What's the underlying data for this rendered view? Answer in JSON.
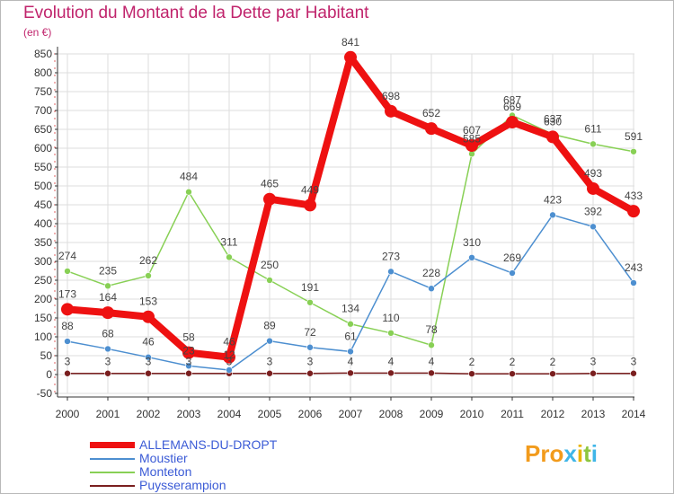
{
  "title": "Evolution du Montant de la Dette par Habitant",
  "unit": "(en €)",
  "chart_data": {
    "type": "line",
    "x": [
      "2000",
      "2001",
      "2002",
      "2003",
      "2004",
      "2005",
      "2006",
      "2007",
      "2008",
      "2009",
      "2010",
      "2011",
      "2012",
      "2013",
      "2014"
    ],
    "ylim": [
      -50,
      850
    ],
    "yticks": [
      -50,
      0,
      50,
      100,
      150,
      200,
      250,
      300,
      350,
      400,
      450,
      500,
      550,
      600,
      650,
      700,
      750,
      800,
      850
    ],
    "grid": true,
    "legend_position": "bottom-left",
    "series": [
      {
        "name": "ALLEMANS-DU-DROPT",
        "color": "#ee1111",
        "values": [
          173,
          164,
          153,
          58,
          46,
          465,
          449,
          841,
          698,
          652,
          607,
          669,
          630,
          493,
          433
        ]
      },
      {
        "name": "Moustier",
        "color": "#4d8fd0",
        "values": [
          88,
          68,
          46,
          23,
          12,
          89,
          72,
          61,
          273,
          228,
          310,
          269,
          423,
          392,
          243
        ]
      },
      {
        "name": "Monteton",
        "color": "#88d055",
        "values": [
          274,
          235,
          262,
          484,
          311,
          250,
          191,
          134,
          110,
          78,
          585,
          687,
          637,
          611,
          591
        ]
      },
      {
        "name": "Puysserampion",
        "color": "#7a1f1f",
        "values": [
          3,
          3,
          3,
          3,
          3,
          3,
          3,
          4,
          4,
          4,
          2,
          2,
          2,
          3,
          3
        ]
      }
    ]
  },
  "logo": {
    "letters": [
      "P",
      "r",
      "o",
      "x",
      "i",
      "t",
      "i"
    ],
    "colors": [
      "#f29b1c",
      "#f29b1c",
      "#f29b1c",
      "#3fb6e8",
      "#e8b400",
      "#8dc63f",
      "#3fb6e8"
    ]
  }
}
